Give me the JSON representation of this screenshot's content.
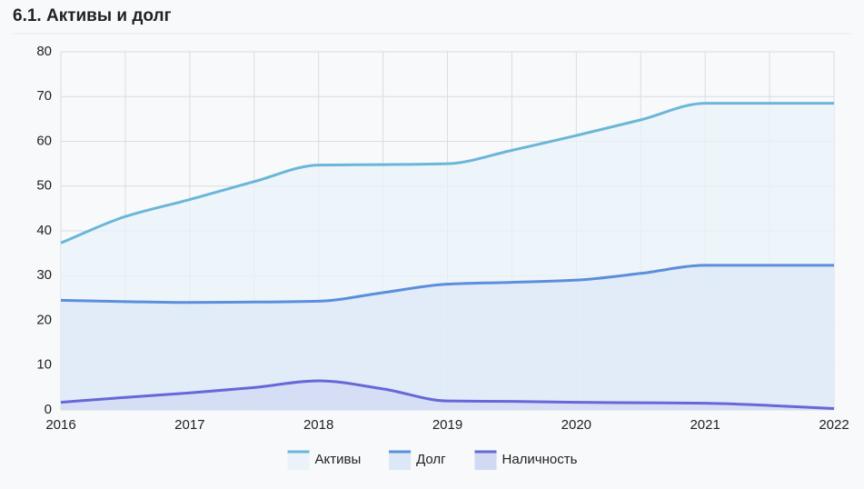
{
  "chart_data": {
    "type": "line",
    "title": "6.1. Активы и долг",
    "x": [
      2016,
      2016.5,
      2017,
      2017.5,
      2018,
      2018.5,
      2019,
      2019.5,
      2020,
      2020.5,
      2021,
      2021.5,
      2022
    ],
    "series": [
      {
        "name": "Активы",
        "color": "#6bb6d8",
        "fill": "#eaf3fa",
        "values": [
          37.3,
          43.2,
          47,
          51,
          54.7,
          54.8,
          55,
          58,
          61.3,
          64.8,
          68.5,
          68.5,
          68.5
        ]
      },
      {
        "name": "Долг",
        "color": "#5b8edc",
        "fill": "#dce8f6",
        "values": [
          24.5,
          24.2,
          24,
          24.1,
          24.3,
          26.2,
          28.1,
          28.5,
          29,
          30.5,
          32.3,
          32.3,
          32.3
        ]
      },
      {
        "name": "Наличность",
        "color": "#6767d8",
        "fill": "#d2d9f3",
        "values": [
          1.7,
          2.8,
          3.8,
          5,
          6.5,
          4.7,
          2,
          1.9,
          1.7,
          1.6,
          1.5,
          1,
          0.3
        ]
      }
    ],
    "xlim": [
      2016,
      2022
    ],
    "xticks": [
      2016,
      2017,
      2018,
      2019,
      2020,
      2021,
      2022
    ],
    "ylim": [
      0,
      80
    ],
    "yticks": [
      0,
      10,
      20,
      30,
      40,
      50,
      60,
      70,
      80
    ],
    "grid": true,
    "legend": "bottom"
  }
}
